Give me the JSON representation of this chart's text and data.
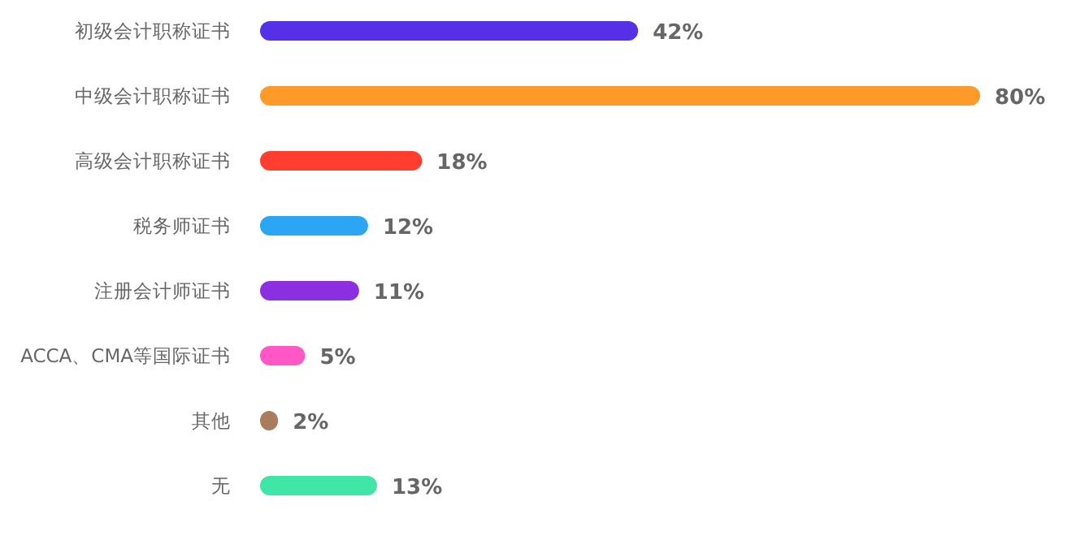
{
  "chart_data": {
    "type": "bar",
    "orientation": "horizontal",
    "categories": [
      "初级会计职称证书",
      "中级会计职称证书",
      "高级会计职称证书",
      "税务师证书",
      "注册会计师证书",
      "ACCA、CMA等国际证书",
      "其他",
      "无"
    ],
    "values": [
      42,
      80,
      18,
      12,
      11,
      5,
      2,
      13
    ],
    "value_labels": [
      "42%",
      "80%",
      "18%",
      "12%",
      "11%",
      "5%",
      "2%",
      "13%"
    ],
    "colors": [
      "#5630e6",
      "#ff9a2a",
      "#ff3e30",
      "#2aa6f4",
      "#8c2fe0",
      "#ff58c6",
      "#a97c5e",
      "#40e6a6"
    ]
  }
}
